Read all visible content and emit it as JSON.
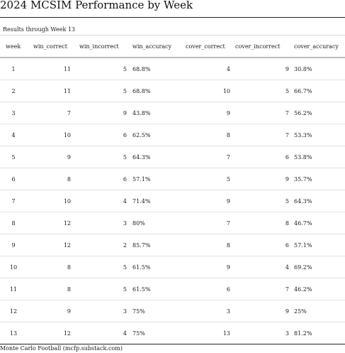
{
  "title": "2024 MCSIM Performance by Week",
  "subtitle": "Results through Week 13",
  "columns": [
    "week",
    "win_correct",
    "win_incorrect",
    "win_accuracy",
    "cover_correct",
    "cover_incorrect",
    "cover_accuracy"
  ],
  "rows": [
    [
      "1",
      "11",
      "5",
      "68.8%",
      "4",
      "9",
      "30.8%"
    ],
    [
      "2",
      "11",
      "5",
      "68.8%",
      "10",
      "5",
      "66.7%"
    ],
    [
      "3",
      "7",
      "9",
      "43.8%",
      "9",
      "7",
      "56.2%"
    ],
    [
      "4",
      "10",
      "6",
      "62.5%",
      "8",
      "7",
      "53.3%"
    ],
    [
      "5",
      "9",
      "5",
      "64.3%",
      "7",
      "6",
      "53.8%"
    ],
    [
      "6",
      "8",
      "6",
      "57.1%",
      "5",
      "9",
      "35.7%"
    ],
    [
      "7",
      "10",
      "4",
      "71.4%",
      "9",
      "5",
      "64.3%"
    ],
    [
      "8",
      "12",
      "3",
      "80%",
      "7",
      "8",
      "46.7%"
    ],
    [
      "9",
      "12",
      "2",
      "85.7%",
      "8",
      "6",
      "57.1%"
    ],
    [
      "10",
      "8",
      "5",
      "61.5%",
      "9",
      "4",
      "69.2%"
    ],
    [
      "11",
      "8",
      "5",
      "61.5%",
      "6",
      "7",
      "46.2%"
    ],
    [
      "12",
      "9",
      "3",
      "75%",
      "3",
      "9",
      "25%"
    ],
    [
      "13",
      "12",
      "4",
      "75%",
      "13",
      "3",
      "81.2%"
    ]
  ],
  "footer": "Monte Carlo Football (mcfp.substack.com)"
}
